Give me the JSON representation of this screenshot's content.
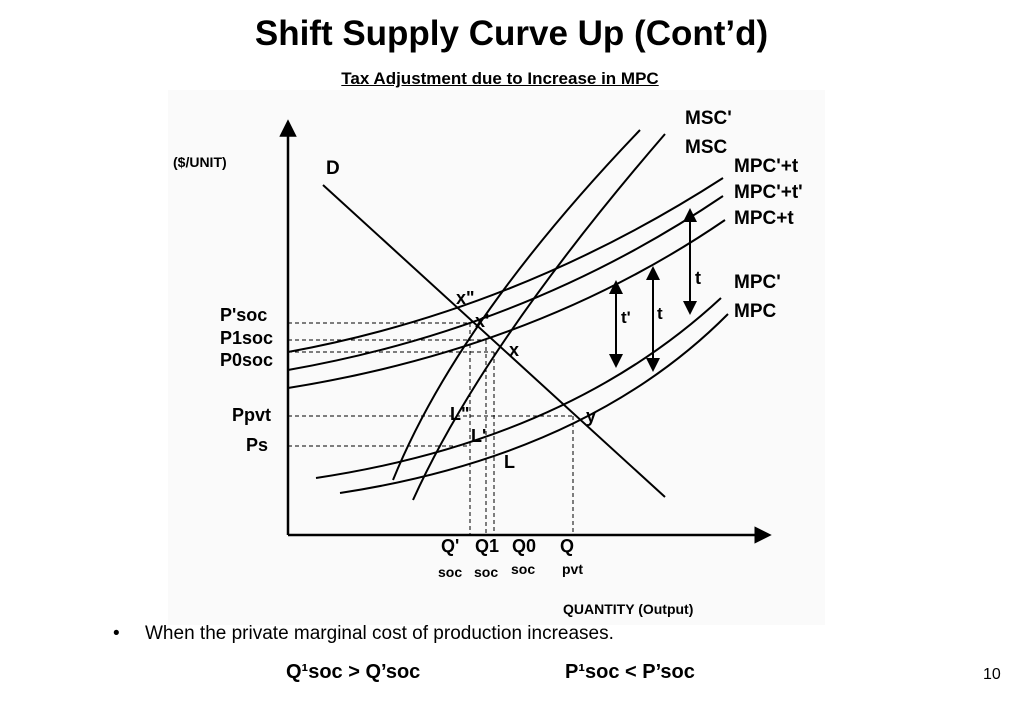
{
  "slide": {
    "title": "Shift Supply Curve Up (Cont’d)",
    "subtitle": "Tax Adjustment due to Increase in MPC",
    "bullet_marker": "•",
    "bullet_text": "When the private marginal cost of production increases.",
    "relation_1": "Q¹soc > Q’soc",
    "relation_2": "P¹soc < P’soc",
    "page_number": "10"
  },
  "diagram": {
    "y_axis_label": "($/UNIT)",
    "x_axis_label": "QUANTITY (Output)",
    "demand_label": "D",
    "curves": {
      "msc_prime": "MSC'",
      "msc": "MSC",
      "mpc_prime_t": "MPC'+t",
      "mpc_prime_t_prime": "MPC'+t'",
      "mpc_t": "MPC+t",
      "mpc_prime": "MPC'",
      "mpc": "MPC"
    },
    "price_labels": {
      "p_prime_soc": "P'soc",
      "p1_soc": "P1soc",
      "p0_soc": "P0soc",
      "p_pvt": "Ppvt",
      "p_s": "Ps"
    },
    "quantity_labels": {
      "q_prime": "Q'",
      "q1": "Q1",
      "q0": "Q0",
      "q": "Q",
      "q_prime_sub": "soc",
      "q1_sub": "soc",
      "q0_sub": "soc",
      "q_sub": "pvt"
    },
    "points": {
      "x_double_prime": "x\"",
      "x_prime": "x'",
      "x": "x",
      "y": "y",
      "l_double_prime": "L\"",
      "l_prime": "L'",
      "l": "L"
    },
    "tax_labels": {
      "t_prime": "t'",
      "t_middle": "t",
      "t_right": "t"
    }
  }
}
